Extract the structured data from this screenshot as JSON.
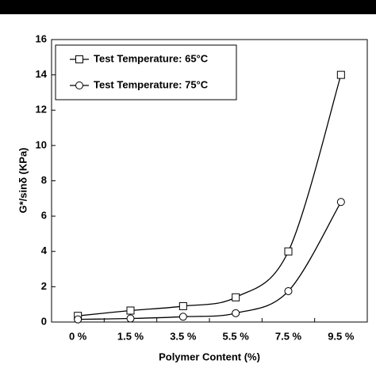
{
  "chart_data": {
    "type": "line",
    "x_label": "Polymer Content (%)",
    "y_label": "G*/sinδ (KPa)",
    "categories": [
      "0 %",
      "1.5 %",
      "3.5 %",
      "5.5 %",
      "7.5 %",
      "9.5 %"
    ],
    "series": [
      {
        "name": "Test Temperature: 65°C",
        "color": "#000000",
        "marker": "square",
        "values": [
          0.35,
          0.65,
          0.9,
          1.4,
          4.0,
          14.0
        ]
      },
      {
        "name": "Test Temperature: 75°C",
        "color": "#000000",
        "marker": "circle",
        "values": [
          0.15,
          0.2,
          0.3,
          0.5,
          1.75,
          6.8
        ]
      }
    ],
    "ylim": [
      0,
      16
    ],
    "yticks": [
      0,
      2,
      4,
      6,
      8,
      10,
      12,
      14,
      16
    ],
    "legend": "top-left"
  }
}
